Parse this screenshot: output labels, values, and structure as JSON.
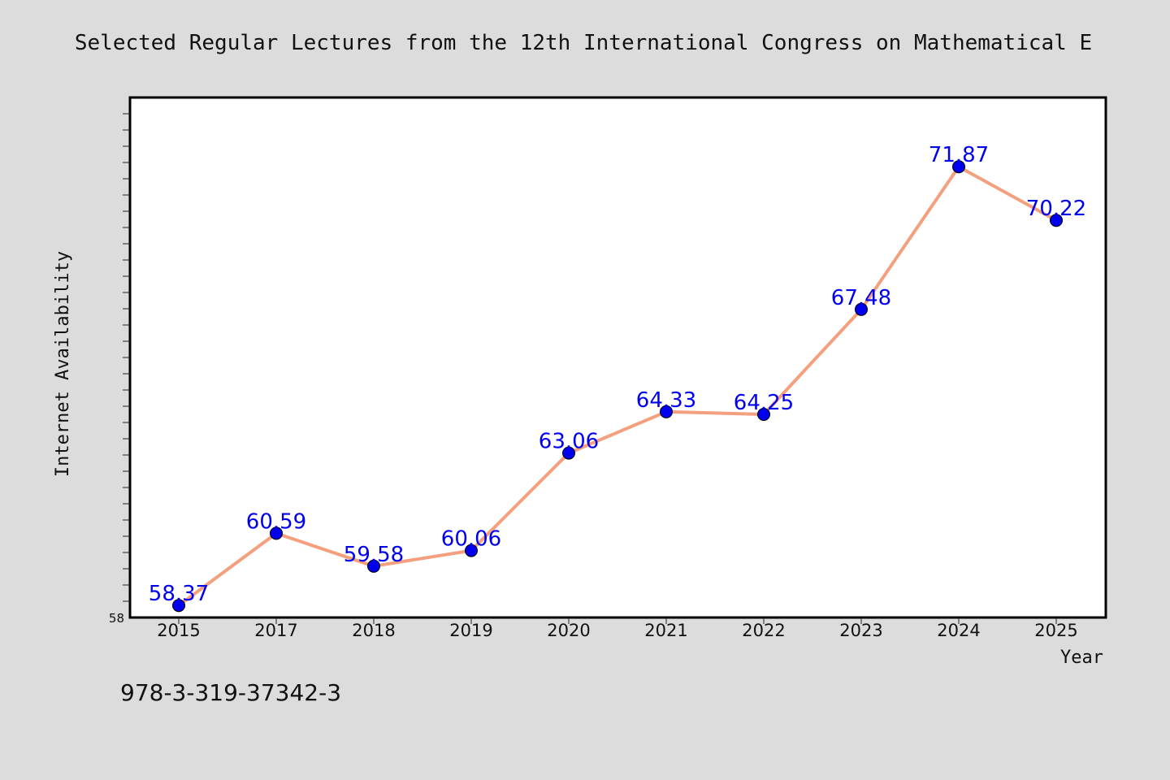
{
  "chart_data": {
    "type": "line",
    "title": "Selected Regular Lectures from the 12th International Congress on Mathematical E",
    "xlabel": "Year",
    "ylabel": "Internet Availability",
    "categories": [
      "2015",
      "2017",
      "2018",
      "2019",
      "2020",
      "2021",
      "2022",
      "2023",
      "2024",
      "2025"
    ],
    "series": [
      {
        "values": [
          58.37,
          60.59,
          59.58,
          60.06,
          63.06,
          64.33,
          64.25,
          67.48,
          71.87,
          70.22
        ],
        "labels": [
          "58.37",
          "60.59",
          "59.58",
          "60.06",
          "63.06",
          "64.33",
          "64.25",
          "67.48",
          "71.87",
          "70.22"
        ],
        "line_color": "#f4a07e",
        "marker_color": "#0000ee"
      }
    ],
    "ylim": [
      58,
      74
    ],
    "y_tick_labels": [
      "58"
    ],
    "grid": false,
    "legend": "none"
  },
  "footer": {
    "text": "978-3-319-37342-3"
  },
  "colors": {
    "background": "#dcdcdc",
    "plot_background": "#ffffff",
    "label_color": "#0000ee"
  }
}
